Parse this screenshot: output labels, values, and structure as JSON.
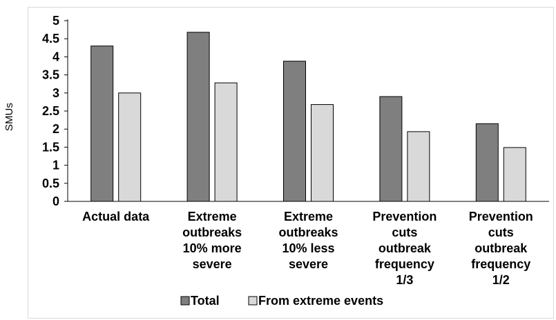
{
  "chart_data": {
    "type": "bar",
    "ylabel": "SMUs",
    "xlabel": "",
    "ylim": [
      0,
      5
    ],
    "yticks": [
      "0",
      "0.5",
      "1",
      "1.5",
      "2",
      "2.5",
      "3",
      "3.5",
      "4",
      "4.5",
      "5"
    ],
    "grid": false,
    "legend_position": "bottom",
    "categories": [
      [
        "Actual data"
      ],
      [
        "Extreme",
        "outbreaks",
        "10% more",
        "severe"
      ],
      [
        "Extreme",
        "outbreaks",
        "10% less",
        "severe"
      ],
      [
        "Prevention",
        "cuts",
        "outbreak",
        "frequency",
        "1/3"
      ],
      [
        "Prevention",
        "cuts",
        "outbreak",
        "frequency",
        "1/2"
      ]
    ],
    "series": [
      {
        "name": "Total",
        "color": "#7f7f7f",
        "values": [
          4.3,
          4.68,
          3.88,
          2.9,
          2.15
        ]
      },
      {
        "name": "From extreme events",
        "color": "#d9d9d9",
        "values": [
          3.0,
          3.28,
          2.68,
          1.93,
          1.49
        ]
      }
    ]
  }
}
